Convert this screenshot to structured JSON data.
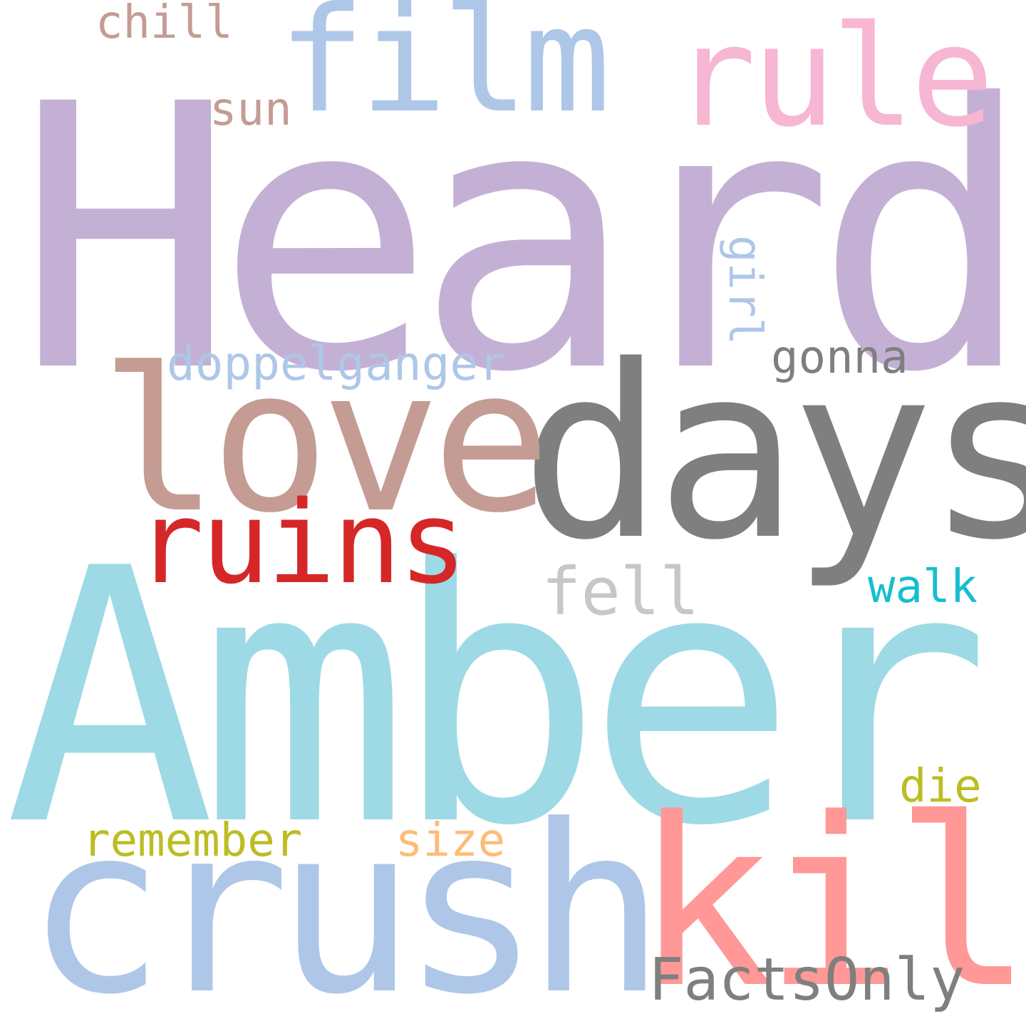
{
  "words": [
    {
      "text": "Heard",
      "color": "#c5b0d5"
    },
    {
      "text": "Amber",
      "color": "#9edae5"
    },
    {
      "text": "days",
      "color": "#7f7f7f"
    },
    {
      "text": "love",
      "color": "#c49c94"
    },
    {
      "text": "crush",
      "color": "#aec7e8"
    },
    {
      "text": "kill",
      "color": "#ff9896"
    },
    {
      "text": "film",
      "color": "#aec7e8"
    },
    {
      "text": "rule",
      "color": "#f7b6d2"
    },
    {
      "text": "ruins",
      "color": "#d62728"
    },
    {
      "text": "FactsOnly",
      "color": "#7f7f7f"
    },
    {
      "text": "doppelganger",
      "color": "#aec7e8"
    },
    {
      "text": "fell",
      "color": "#c7c7c7"
    },
    {
      "text": "gonna",
      "color": "#7f7f7f"
    },
    {
      "text": "girl",
      "color": "#aec7e8"
    },
    {
      "text": "chill",
      "color": "#c49c94"
    },
    {
      "text": "sun",
      "color": "#c49c94"
    },
    {
      "text": "walk",
      "color": "#17becf"
    },
    {
      "text": "remember",
      "color": "#bcbd22"
    },
    {
      "text": "size",
      "color": "#ffbb78"
    },
    {
      "text": "die",
      "color": "#bcbd22"
    }
  ]
}
